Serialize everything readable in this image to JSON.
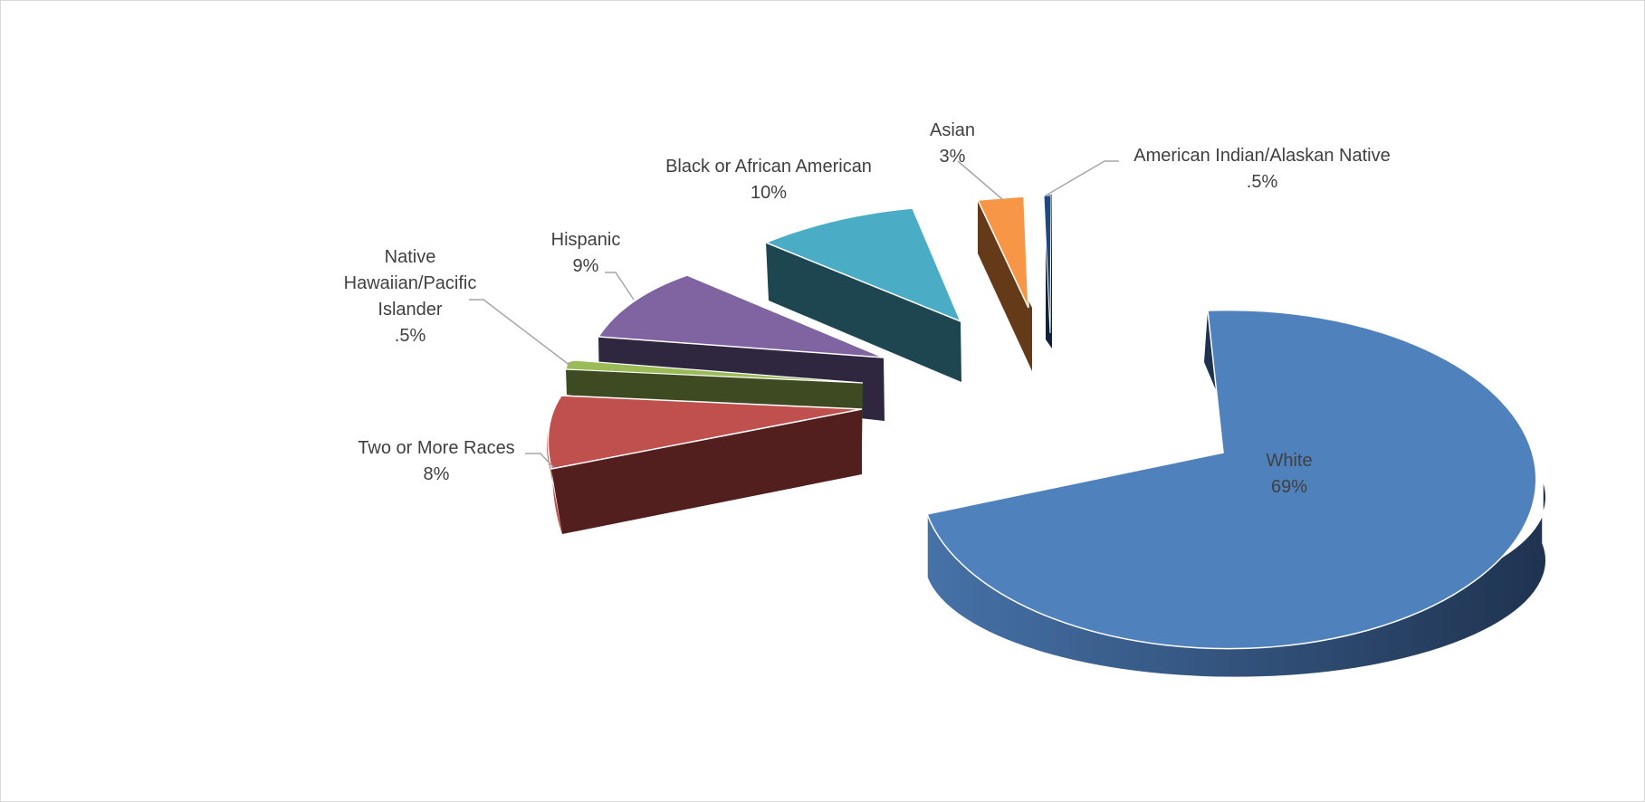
{
  "chart_data": {
    "type": "pie",
    "style": "3d-exploded",
    "title": "",
    "legend": "none",
    "slices": [
      {
        "category": "White",
        "value": 69,
        "value_label": "69%",
        "color": "#4F81BD",
        "side_color": "#1F3350"
      },
      {
        "category": "Two or More Races",
        "value": 8,
        "value_label": "8%",
        "color": "#C0504D",
        "side_color": "#521E1E"
      },
      {
        "category": "Native Hawaiian/Pacific Islander",
        "value": 0.5,
        "value_label": ".5%",
        "color": "#9BBB59",
        "side_color": "#3E4B22"
      },
      {
        "category": "Hispanic",
        "value": 9,
        "value_label": "9%",
        "color": "#8064A2",
        "side_color": "#2F2640"
      },
      {
        "category": "Black or African American",
        "value": 10,
        "value_label": "10%",
        "color": "#4BACC6",
        "side_color": "#1E4650"
      },
      {
        "category": "Asian",
        "value": 3,
        "value_label": "3%",
        "color": "#F79646",
        "side_color": "#653A18"
      },
      {
        "category": "American Indian/Alaskan Native",
        "value": 0.5,
        "value_label": ".5%",
        "color": "#1F497D",
        "side_color": "#0E223C"
      }
    ]
  }
}
